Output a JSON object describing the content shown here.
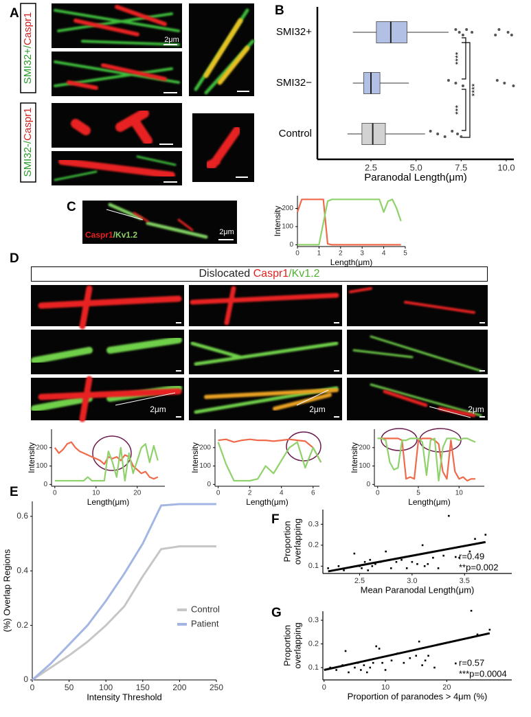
{
  "panel_labels": [
    "A",
    "B",
    "C",
    "D",
    "E",
    "F",
    "G"
  ],
  "panel_A": {
    "label_1": [
      "SMI32+/",
      "Caspr1"
    ],
    "label_2": [
      "SMI32-/",
      "Caspr1"
    ],
    "scale": "2μm"
  },
  "panel_C": {
    "label": [
      "Caspr1",
      "/Kv1.2"
    ],
    "scale": "2μm"
  },
  "panel_D": {
    "header": [
      "Dislocated",
      "Caspr1",
      "/Kv1.2"
    ],
    "scales": [
      "2μm",
      "2μm",
      "2μm"
    ]
  },
  "chart_data": [
    {
      "type": "box",
      "xlabel": "Paranodal Length(μm)",
      "categories": [
        "SMI32+",
        "SMI32−",
        "Control"
      ],
      "xlim": [
        -0.47,
        10.42
      ],
      "xticks": [
        2.5,
        {
          "value": 5,
          "label": "5.0"
        },
        7.5,
        {
          "value": 10,
          "label": "10.0"
        }
      ],
      "colors": [
        "#b3c0e6",
        "#b3c0e6",
        "#d2d2d2"
      ],
      "boxes": [
        {
          "min": 1.5,
          "q1": 2.8,
          "median": 3.6,
          "q3": 4.5,
          "max": 6.8,
          "outliers": [
            7.2,
            7.4,
            7.6,
            7.8,
            8.1,
            9.4,
            9.6,
            10.1,
            10.3
          ]
        },
        {
          "min": 1.5,
          "q1": 2.1,
          "median": 2.5,
          "q3": 3.0,
          "max": 4.6,
          "outliers": [
            6.8,
            7.2,
            7.6,
            9.5,
            9.9,
            10.4
          ]
        },
        {
          "min": 1.2,
          "q1": 2.0,
          "median": 2.6,
          "q3": 3.3,
          "max": 5.5,
          "outliers": [
            5.8,
            6.2,
            6.6,
            7.0,
            7.3,
            7.5
          ]
        }
      ],
      "annotations": [
        "****",
        "***",
        "****"
      ]
    },
    {
      "type": "line",
      "xlabel": "Length(μm)",
      "ylabel": "Intensity",
      "x": [
        0,
        0.2,
        0.4,
        0.6,
        0.8,
        1.0,
        1.2,
        1.4,
        1.6,
        1.8,
        2.0,
        2.2,
        2.4,
        2.6,
        2.8,
        3.0,
        3.2,
        3.4,
        3.6,
        3.8,
        4.0,
        4.2,
        4.4,
        4.6,
        4.8
      ],
      "xlim": [
        0,
        5
      ],
      "xticks": [
        0,
        1,
        2,
        3,
        4,
        5
      ],
      "ylim": [
        -10,
        270
      ],
      "yticks": [
        0,
        100,
        200
      ],
      "series": [
        {
          "name": "Caspr1",
          "color": "#ef6a4a",
          "values": [
            180,
            250,
            250,
            250,
            250,
            250,
            250,
            5,
            0,
            0,
            0,
            0,
            0,
            0,
            0,
            0,
            0,
            0,
            0,
            0,
            0,
            0,
            0,
            0,
            0
          ]
        },
        {
          "name": "Kv1.2",
          "color": "#8fd16a",
          "values": [
            0,
            0,
            0,
            0,
            0,
            0,
            120,
            240,
            250,
            250,
            250,
            250,
            250,
            250,
            250,
            250,
            250,
            250,
            250,
            250,
            180,
            240,
            250,
            200,
            130
          ]
        }
      ]
    },
    {
      "type": "line",
      "xlabel": "Length(μm)",
      "ylabel": "Intensity",
      "x": [
        0,
        1,
        2,
        3,
        4,
        5,
        6,
        7,
        8,
        9,
        10,
        11,
        12,
        13,
        14,
        15,
        16,
        17,
        18,
        19,
        20,
        21,
        22,
        23,
        24,
        25
      ],
      "xlim": [
        -0.8,
        26.7
      ],
      "xticks": [
        0,
        10,
        20
      ],
      "ylim": [
        -10,
        300
      ],
      "yticks": [
        0,
        100,
        200
      ],
      "series": [
        {
          "name": "Caspr1",
          "color": "#ef6a4a",
          "values": [
            200,
            170,
            190,
            220,
            230,
            200,
            180,
            170,
            160,
            150,
            140,
            130,
            110,
            150,
            140,
            150,
            130,
            160,
            150,
            100,
            80,
            60,
            70,
            40,
            30,
            40
          ]
        },
        {
          "name": "Kv1.2",
          "color": "#8fd16a",
          "values": [
            20,
            20,
            20,
            20,
            20,
            20,
            20,
            20,
            40,
            20,
            20,
            20,
            20,
            180,
            120,
            40,
            200,
            20,
            170,
            60,
            130,
            200,
            220,
            120,
            210,
            130
          ]
        }
      ]
    },
    {
      "type": "line",
      "xlabel": "Length(μm)",
      "ylabel": "Intensity",
      "x": [
        0,
        0.5,
        1,
        1.5,
        2,
        2.5,
        3,
        3.5,
        4,
        4.5,
        5,
        5.5,
        6,
        6.5
      ],
      "xlim": [
        -0.2,
        6.4
      ],
      "xticks": [
        0,
        2,
        4,
        6
      ],
      "ylim": [
        -10,
        300
      ],
      "yticks": [
        0,
        100,
        200
      ],
      "series": [
        {
          "name": "Caspr1",
          "color": "#ef6a4a",
          "values": [
            240,
            245,
            230,
            240,
            245,
            240,
            240,
            235,
            240,
            245,
            240,
            235,
            200,
            120
          ]
        },
        {
          "name": "Kv1.2",
          "color": "#8fd16a",
          "values": [
            230,
            110,
            20,
            20,
            20,
            30,
            100,
            60,
            130,
            200,
            230,
            90,
            200,
            120
          ]
        }
      ]
    },
    {
      "type": "line",
      "xlabel": "Length(μm)",
      "ylabel": "Intensity",
      "x": [
        0,
        0.5,
        1,
        1.5,
        2,
        2.5,
        3,
        3.5,
        4,
        4.5,
        5,
        5.5,
        6,
        6.5,
        7,
        7.5,
        8,
        8.5,
        9,
        9.5,
        10,
        10.5,
        11,
        11.5,
        12
      ],
      "xlim": [
        -0.4,
        13.1
      ],
      "xticks": [
        0,
        5,
        10
      ],
      "ylim": [
        -10,
        300
      ],
      "yticks": [
        0,
        100,
        200
      ],
      "series": [
        {
          "name": "Caspr1",
          "color": "#ef6a4a",
          "values": [
            250,
            250,
            250,
            250,
            250,
            250,
            240,
            30,
            40,
            30,
            240,
            250,
            250,
            250,
            240,
            220,
            70,
            30,
            240,
            70,
            30,
            40,
            20,
            30,
            30
          ]
        },
        {
          "name": "Kv1.2",
          "color": "#8fd16a",
          "values": [
            250,
            250,
            240,
            120,
            80,
            90,
            240,
            240,
            250,
            250,
            250,
            230,
            50,
            240,
            250,
            20,
            200,
            250,
            250,
            250,
            240,
            250,
            250,
            240,
            230
          ]
        }
      ]
    },
    {
      "type": "line",
      "xlabel": "Intensity Threshold",
      "ylabel": "(%) Overlap Regions",
      "x": [
        0,
        25,
        50,
        75,
        100,
        125,
        150,
        175,
        200,
        250
      ],
      "xlim": [
        0,
        250
      ],
      "xticks": [
        0,
        50,
        100,
        150,
        200,
        250
      ],
      "ylim": [
        0,
        0.655
      ],
      "yticks": [
        0,
        0.2,
        0.4,
        0.6
      ],
      "legend": "center-right",
      "series": [
        {
          "name": "Control",
          "color": "#c6c6c6",
          "values": [
            0,
            0.045,
            0.09,
            0.14,
            0.2,
            0.27,
            0.38,
            0.48,
            0.49,
            0.49
          ]
        },
        {
          "name": "Patient",
          "color": "#a3b6e3",
          "values": [
            0,
            0.06,
            0.13,
            0.2,
            0.29,
            0.39,
            0.5,
            0.64,
            0.645,
            0.645
          ]
        }
      ]
    },
    {
      "type": "scatter",
      "xlabel": "Mean Paranodal Length(μm)",
      "ylabel": [
        "Proportion",
        "overlapping"
      ],
      "xlim": [
        2.15,
        3.95
      ],
      "xticks": [
        2.5,
        {
          "value": 3,
          "label": "3.0"
        },
        3.5
      ],
      "ylim": [
        0.065,
        0.37
      ],
      "yticks": [
        0.1,
        0.2,
        0.3
      ],
      "x": [
        2.2,
        2.3,
        2.35,
        2.45,
        2.5,
        2.52,
        2.55,
        2.58,
        2.6,
        2.62,
        2.65,
        2.7,
        2.75,
        2.8,
        2.85,
        2.9,
        2.95,
        3.0,
        3.05,
        3.1,
        3.12,
        3.15,
        3.2,
        3.25,
        3.3,
        3.35,
        3.45,
        3.55,
        3.6,
        3.7
      ],
      "values": [
        0.09,
        0.1,
        0.08,
        0.16,
        0.1,
        0.09,
        0.12,
        0.08,
        0.13,
        0.1,
        0.11,
        0.12,
        0.17,
        0.09,
        0.12,
        0.13,
        0.09,
        0.12,
        0.11,
        0.2,
        0.1,
        0.11,
        0.14,
        0.09,
        0.15,
        0.34,
        0.14,
        0.17,
        0.23,
        0.25
      ],
      "fit": {
        "x": [
          2.2,
          3.7
        ],
        "values": [
          0.075,
          0.215
        ]
      },
      "annotations": [
        "r=0.49",
        "**p=0.002"
      ]
    },
    {
      "type": "scatter",
      "xlabel": "Proportion of paranodes > 4μm (%)",
      "ylabel": [
        "Proportion",
        "overlapping"
      ],
      "xlim": [
        -0.2,
        30.6
      ],
      "xticks": [
        0,
        10,
        20
      ],
      "ylim": [
        0.048,
        0.338
      ],
      "yticks": [
        0.1,
        0.2,
        0.3
      ],
      "x": [
        1,
        2,
        3,
        3.5,
        4,
        5,
        5.5,
        6,
        6.5,
        7,
        7.5,
        8,
        8.5,
        9,
        9.5,
        10,
        11,
        12,
        13,
        14,
        15,
        15.5,
        16,
        16.5,
        17,
        18,
        24,
        25,
        27
      ],
      "values": [
        0.1,
        0.09,
        0.11,
        0.17,
        0.08,
        0.1,
        0.12,
        0.09,
        0.11,
        0.08,
        0.1,
        0.12,
        0.19,
        0.18,
        0.12,
        0.09,
        0.13,
        0.16,
        0.12,
        0.14,
        0.15,
        0.21,
        0.11,
        0.13,
        0.15,
        0.1,
        0.34,
        0.24,
        0.26
      ],
      "fit": {
        "x": [
          0,
          27
        ],
        "values": [
          0.09,
          0.245
        ]
      },
      "annotations": [
        "r=0.57",
        "***p=0.0004"
      ]
    }
  ]
}
